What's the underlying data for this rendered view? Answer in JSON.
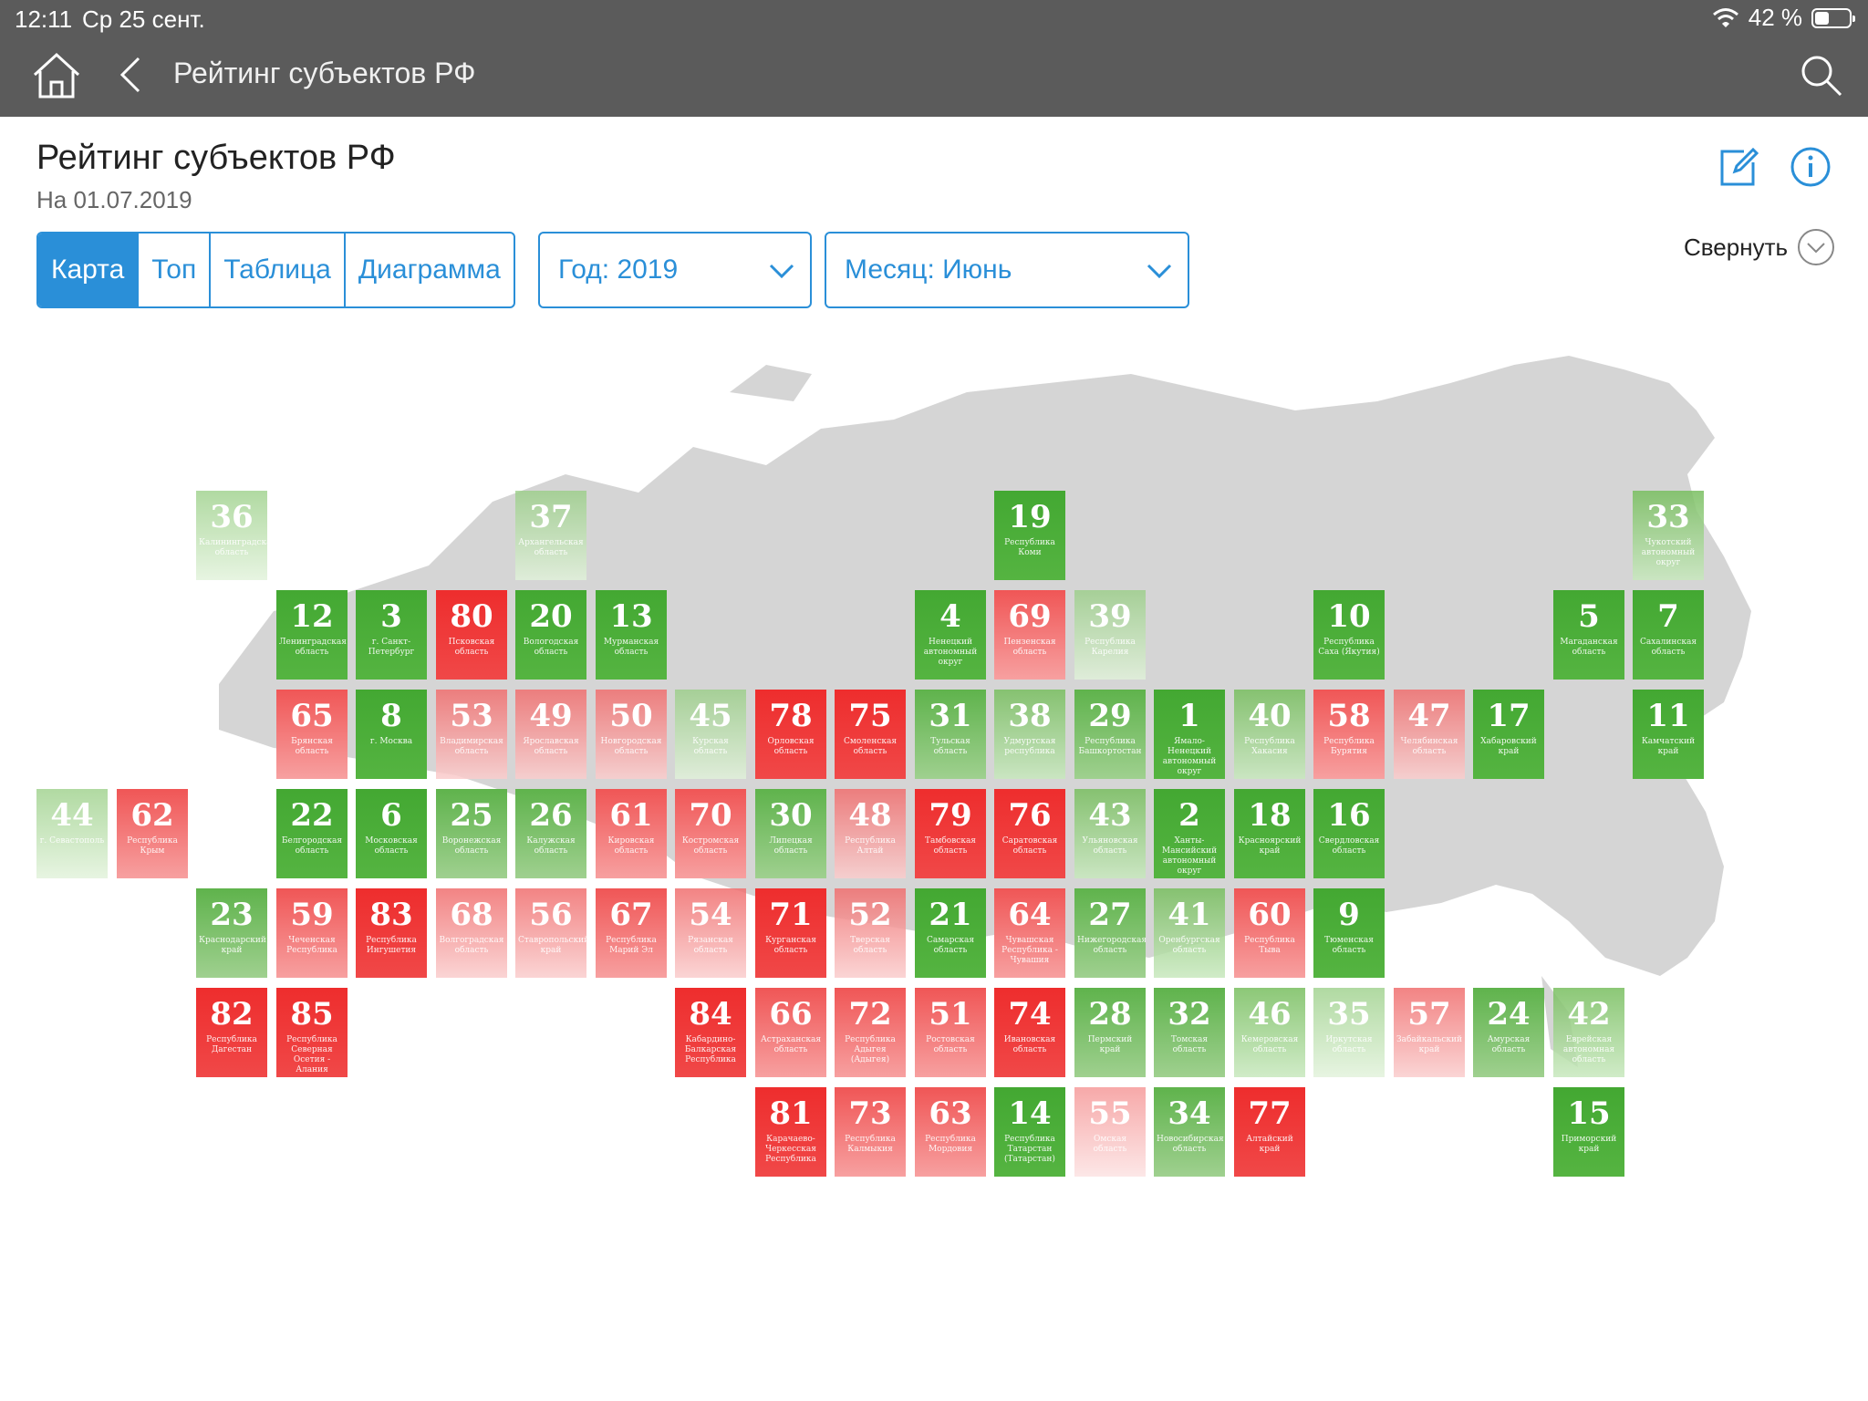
{
  "status_bar": {
    "time": "12:11",
    "date": "Ср 25 сент.",
    "battery": "42 %",
    "battery_level": 0.42
  },
  "nav": {
    "title": "Рейтинг субъектов РФ"
  },
  "page": {
    "title": "Рейтинг субъектов РФ",
    "date": "На 01.07.2019",
    "collapse_label": "Свернуть"
  },
  "tabs": [
    {
      "label": "Карта",
      "active": true
    },
    {
      "label": "Топ",
      "active": false
    },
    {
      "label": "Таблица",
      "active": false
    },
    {
      "label": "Диаграмма",
      "active": false
    }
  ],
  "filters": {
    "year": "Год: 2019",
    "month": "Месяц: Июнь"
  },
  "colors": {
    "accent": "#2a8fd8",
    "nav_bg": "#5b5b5b",
    "green": "#43a832",
    "red": "#ee2d2d"
  },
  "regions": [
    {
      "r": 0,
      "c": 2,
      "rank": "36",
      "name": "Калининградская область",
      "t": "g4"
    },
    {
      "r": 0,
      "c": 6,
      "rank": "37",
      "name": "Архангельская область",
      "t": "g4"
    },
    {
      "r": 0,
      "c": 12,
      "rank": "19",
      "name": "Республика Коми",
      "t": "g1"
    },
    {
      "r": 0,
      "c": 20,
      "rank": "33",
      "name": "Чукотский автономный округ",
      "t": "g3"
    },
    {
      "r": 1,
      "c": 3,
      "rank": "12",
      "name": "Ленинградская область",
      "t": "g1"
    },
    {
      "r": 1,
      "c": 4,
      "rank": "3",
      "name": "г. Санкт-Петербург",
      "t": "g1"
    },
    {
      "r": 1,
      "c": 5,
      "rank": "80",
      "name": "Псковская область",
      "t": "r1"
    },
    {
      "r": 1,
      "c": 6,
      "rank": "20",
      "name": "Вологодская область",
      "t": "g1"
    },
    {
      "r": 1,
      "c": 7,
      "rank": "13",
      "name": "Мурманская область",
      "t": "g1"
    },
    {
      "r": 1,
      "c": 11,
      "rank": "4",
      "name": "Ненецкий автономный округ",
      "t": "g1"
    },
    {
      "r": 1,
      "c": 12,
      "rank": "69",
      "name": "Пензенская область",
      "t": "r2"
    },
    {
      "r": 1,
      "c": 13,
      "rank": "39",
      "name": "Республика Карелия",
      "t": "g4"
    },
    {
      "r": 1,
      "c": 16,
      "rank": "10",
      "name": "Республика Саха (Якутия)",
      "t": "g1"
    },
    {
      "r": 1,
      "c": 19,
      "rank": "5",
      "name": "Магаданская область",
      "t": "g1"
    },
    {
      "r": 1,
      "c": 20,
      "rank": "7",
      "name": "Сахалинская область",
      "t": "g1"
    },
    {
      "r": 2,
      "c": 3,
      "rank": "65",
      "name": "Брянская область",
      "t": "r2"
    },
    {
      "r": 2,
      "c": 4,
      "rank": "8",
      "name": "г. Москва",
      "t": "g1"
    },
    {
      "r": 2,
      "c": 5,
      "rank": "53",
      "name": "Владимирская область",
      "t": "r3"
    },
    {
      "r": 2,
      "c": 6,
      "rank": "49",
      "name": "Ярославская область",
      "t": "r3"
    },
    {
      "r": 2,
      "c": 7,
      "rank": "50",
      "name": "Новгородская область",
      "t": "r3"
    },
    {
      "r": 2,
      "c": 8,
      "rank": "45",
      "name": "Курская область",
      "t": "g4"
    },
    {
      "r": 2,
      "c": 9,
      "rank": "78",
      "name": "Орловская область",
      "t": "r1"
    },
    {
      "r": 2,
      "c": 10,
      "rank": "75",
      "name": "Смоленская область",
      "t": "r1"
    },
    {
      "r": 2,
      "c": 11,
      "rank": "31",
      "name": "Тульская область",
      "t": "g2"
    },
    {
      "r": 2,
      "c": 12,
      "rank": "38",
      "name": "Удмуртская республика",
      "t": "g3"
    },
    {
      "r": 2,
      "c": 13,
      "rank": "29",
      "name": "Республика Башкортостан",
      "t": "g2"
    },
    {
      "r": 2,
      "c": 14,
      "rank": "1",
      "name": "Ямало-Ненецкий автономный округ",
      "t": "g1"
    },
    {
      "r": 2,
      "c": 15,
      "rank": "40",
      "name": "Республика Хакасия",
      "t": "g3"
    },
    {
      "r": 2,
      "c": 16,
      "rank": "58",
      "name": "Республика Бурятия",
      "t": "r2"
    },
    {
      "r": 2,
      "c": 17,
      "rank": "47",
      "name": "Челябинская область",
      "t": "r3"
    },
    {
      "r": 2,
      "c": 18,
      "rank": "17",
      "name": "Хабаровский край",
      "t": "g1"
    },
    {
      "r": 2,
      "c": 20,
      "rank": "11",
      "name": "Камчатский край",
      "t": "g1"
    },
    {
      "r": 3,
      "c": 0,
      "rank": "44",
      "name": "г. Севастополь",
      "t": "g4"
    },
    {
      "r": 3,
      "c": 1,
      "rank": "62",
      "name": "Республика Крым",
      "t": "r2"
    },
    {
      "r": 3,
      "c": 3,
      "rank": "22",
      "name": "Белгородская область",
      "t": "g1"
    },
    {
      "r": 3,
      "c": 4,
      "rank": "6",
      "name": "Московская область",
      "t": "g1"
    },
    {
      "r": 3,
      "c": 5,
      "rank": "25",
      "name": "Воронежская область",
      "t": "g2"
    },
    {
      "r": 3,
      "c": 6,
      "rank": "26",
      "name": "Калужская область",
      "t": "g2"
    },
    {
      "r": 3,
      "c": 7,
      "rank": "61",
      "name": "Кировская область",
      "t": "r2"
    },
    {
      "r": 3,
      "c": 8,
      "rank": "70",
      "name": "Костромская область",
      "t": "r2"
    },
    {
      "r": 3,
      "c": 9,
      "rank": "30",
      "name": "Липецкая область",
      "t": "g2"
    },
    {
      "r": 3,
      "c": 10,
      "rank": "48",
      "name": "Республика Алтай",
      "t": "r3"
    },
    {
      "r": 3,
      "c": 11,
      "rank": "79",
      "name": "Тамбовская область",
      "t": "r1"
    },
    {
      "r": 3,
      "c": 12,
      "rank": "76",
      "name": "Саратовская область",
      "t": "r1"
    },
    {
      "r": 3,
      "c": 13,
      "rank": "43",
      "name": "Ульяновская область",
      "t": "g3"
    },
    {
      "r": 3,
      "c": 14,
      "rank": "2",
      "name": "Ханты-Мансийский автономный округ",
      "t": "g1"
    },
    {
      "r": 3,
      "c": 15,
      "rank": "18",
      "name": "Красноярский край",
      "t": "g1"
    },
    {
      "r": 3,
      "c": 16,
      "rank": "16",
      "name": "Свердловская область",
      "t": "g1"
    },
    {
      "r": 4,
      "c": 2,
      "rank": "23",
      "name": "Краснодарский край",
      "t": "g2"
    },
    {
      "r": 4,
      "c": 3,
      "rank": "59",
      "name": "Чеченская Республика",
      "t": "r2"
    },
    {
      "r": 4,
      "c": 4,
      "rank": "83",
      "name": "Республика Ингушетия",
      "t": "r1"
    },
    {
      "r": 4,
      "c": 5,
      "rank": "68",
      "name": "Волгоградская область",
      "t": "r3"
    },
    {
      "r": 4,
      "c": 6,
      "rank": "56",
      "name": "Ставропольский край",
      "t": "r3"
    },
    {
      "r": 4,
      "c": 7,
      "rank": "67",
      "name": "Республика Марий Эл",
      "t": "r2"
    },
    {
      "r": 4,
      "c": 8,
      "rank": "54",
      "name": "Рязанская область",
      "t": "r3"
    },
    {
      "r": 4,
      "c": 9,
      "rank": "71",
      "name": "Курганская область",
      "t": "r1"
    },
    {
      "r": 4,
      "c": 10,
      "rank": "52",
      "name": "Тверская область",
      "t": "r3"
    },
    {
      "r": 4,
      "c": 11,
      "rank": "21",
      "name": "Самарская область",
      "t": "g1"
    },
    {
      "r": 4,
      "c": 12,
      "rank": "64",
      "name": "Чувашская Республика - Чувашия",
      "t": "r2"
    },
    {
      "r": 4,
      "c": 13,
      "rank": "27",
      "name": "Нижегородская область",
      "t": "g2"
    },
    {
      "r": 4,
      "c": 14,
      "rank": "41",
      "name": "Оренбургская область",
      "t": "g3"
    },
    {
      "r": 4,
      "c": 15,
      "rank": "60",
      "name": "Республика Тыва",
      "t": "r2"
    },
    {
      "r": 4,
      "c": 16,
      "rank": "9",
      "name": "Тюменская область",
      "t": "g1"
    },
    {
      "r": 5,
      "c": 2,
      "rank": "82",
      "name": "Республика Дагестан",
      "t": "r1"
    },
    {
      "r": 5,
      "c": 3,
      "rank": "85",
      "name": "Республика Северная Осетия - Алания",
      "t": "r1"
    },
    {
      "r": 5,
      "c": 8,
      "rank": "84",
      "name": "Кабардино-Балкарская Республика",
      "t": "r1"
    },
    {
      "r": 5,
      "c": 9,
      "rank": "66",
      "name": "Астраханская область",
      "t": "r2"
    },
    {
      "r": 5,
      "c": 10,
      "rank": "72",
      "name": "Республика Адыгея (Адыгея)",
      "t": "r2"
    },
    {
      "r": 5,
      "c": 11,
      "rank": "51",
      "name": "Ростовская область",
      "t": "r2"
    },
    {
      "r": 5,
      "c": 12,
      "rank": "74",
      "name": "Ивановская область",
      "t": "r1"
    },
    {
      "r": 5,
      "c": 13,
      "rank": "28",
      "name": "Пермский край",
      "t": "g2"
    },
    {
      "r": 5,
      "c": 14,
      "rank": "32",
      "name": "Томская область",
      "t": "g2"
    },
    {
      "r": 5,
      "c": 15,
      "rank": "46",
      "name": "Кемеровская область",
      "t": "g3"
    },
    {
      "r": 5,
      "c": 16,
      "rank": "35",
      "name": "Иркутская область",
      "t": "g4"
    },
    {
      "r": 5,
      "c": 17,
      "rank": "57",
      "name": "Забайкальский край",
      "t": "r3"
    },
    {
      "r": 5,
      "c": 18,
      "rank": "24",
      "name": "Амурская область",
      "t": "g2"
    },
    {
      "r": 5,
      "c": 19,
      "rank": "42",
      "name": "Еврейская автономная область",
      "t": "g3"
    },
    {
      "r": 6,
      "c": 9,
      "rank": "81",
      "name": "Карачаево-Черкесская Республика",
      "t": "r1"
    },
    {
      "r": 6,
      "c": 10,
      "rank": "73",
      "name": "Республика Калмыкия",
      "t": "r2"
    },
    {
      "r": 6,
      "c": 11,
      "rank": "63",
      "name": "Республика Мордовия",
      "t": "r2"
    },
    {
      "r": 6,
      "c": 12,
      "rank": "14",
      "name": "Республика Татарстан (Татарстан)",
      "t": "g1"
    },
    {
      "r": 6,
      "c": 13,
      "rank": "55",
      "name": "Омская область",
      "t": "r4"
    },
    {
      "r": 6,
      "c": 14,
      "rank": "34",
      "name": "Новосибирская область",
      "t": "g2"
    },
    {
      "r": 6,
      "c": 15,
      "rank": "77",
      "name": "Алтайский край",
      "t": "r1"
    },
    {
      "r": 6,
      "c": 19,
      "rank": "15",
      "name": "Приморский край",
      "t": "g1"
    }
  ]
}
